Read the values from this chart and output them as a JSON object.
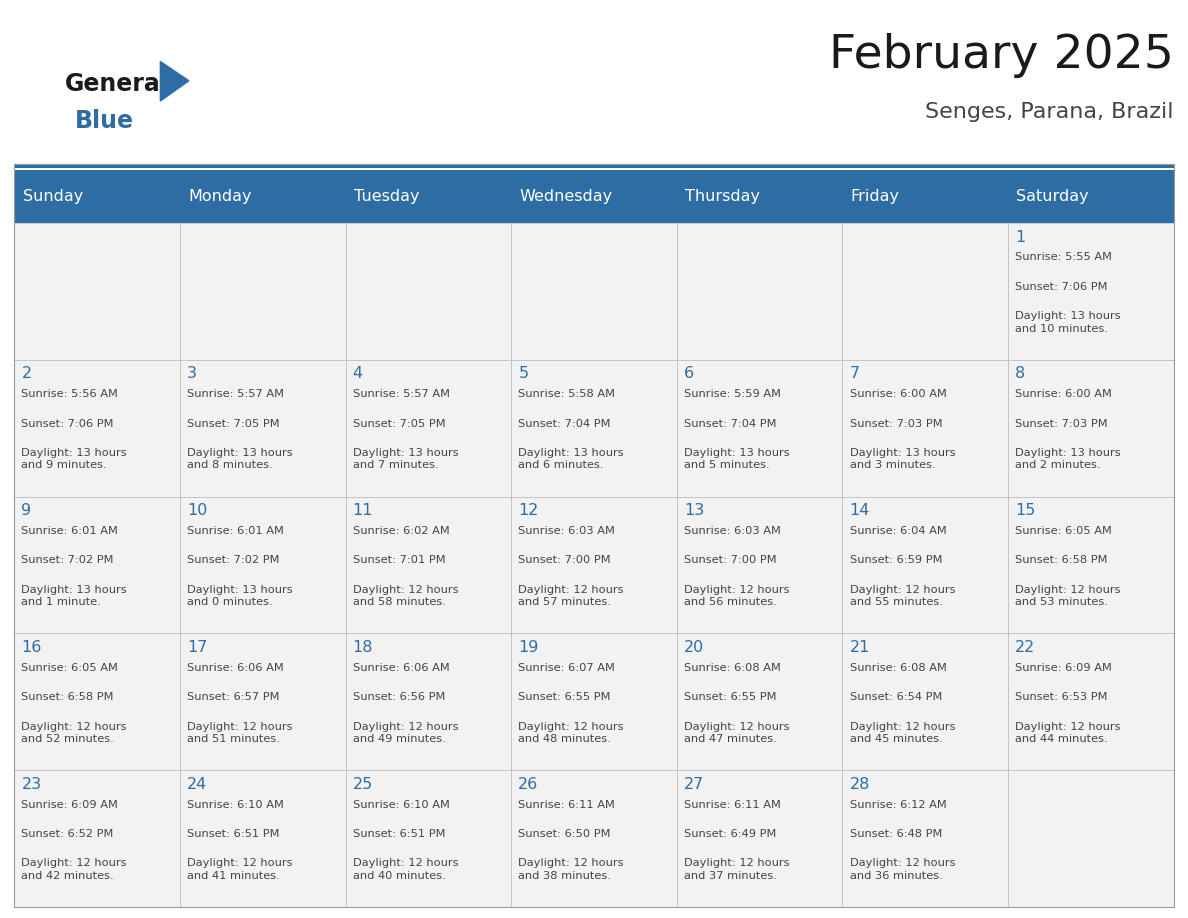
{
  "title": "February 2025",
  "subtitle": "Senges, Parana, Brazil",
  "header_bg": "#2E6DA4",
  "header_text_color": "#FFFFFF",
  "cell_bg_light": "#F2F2F2",
  "cell_bg_white": "#FFFFFF",
  "day_number_color": "#2E6DA4",
  "cell_text_color": "#444444",
  "grid_line_color": "#BBBBBB",
  "days_of_week": [
    "Sunday",
    "Monday",
    "Tuesday",
    "Wednesday",
    "Thursday",
    "Friday",
    "Saturday"
  ],
  "weeks": [
    [
      null,
      null,
      null,
      null,
      null,
      null,
      1
    ],
    [
      2,
      3,
      4,
      5,
      6,
      7,
      8
    ],
    [
      9,
      10,
      11,
      12,
      13,
      14,
      15
    ],
    [
      16,
      17,
      18,
      19,
      20,
      21,
      22
    ],
    [
      23,
      24,
      25,
      26,
      27,
      28,
      null
    ]
  ],
  "cell_data": {
    "1": {
      "sunrise": "5:55 AM",
      "sunset": "7:06 PM",
      "daylight": "13 hours and 10 minutes."
    },
    "2": {
      "sunrise": "5:56 AM",
      "sunset": "7:06 PM",
      "daylight": "13 hours and 9 minutes."
    },
    "3": {
      "sunrise": "5:57 AM",
      "sunset": "7:05 PM",
      "daylight": "13 hours and 8 minutes."
    },
    "4": {
      "sunrise": "5:57 AM",
      "sunset": "7:05 PM",
      "daylight": "13 hours and 7 minutes."
    },
    "5": {
      "sunrise": "5:58 AM",
      "sunset": "7:04 PM",
      "daylight": "13 hours and 6 minutes."
    },
    "6": {
      "sunrise": "5:59 AM",
      "sunset": "7:04 PM",
      "daylight": "13 hours and 5 minutes."
    },
    "7": {
      "sunrise": "6:00 AM",
      "sunset": "7:03 PM",
      "daylight": "13 hours and 3 minutes."
    },
    "8": {
      "sunrise": "6:00 AM",
      "sunset": "7:03 PM",
      "daylight": "13 hours and 2 minutes."
    },
    "9": {
      "sunrise": "6:01 AM",
      "sunset": "7:02 PM",
      "daylight": "13 hours and 1 minute."
    },
    "10": {
      "sunrise": "6:01 AM",
      "sunset": "7:02 PM",
      "daylight": "13 hours and 0 minutes."
    },
    "11": {
      "sunrise": "6:02 AM",
      "sunset": "7:01 PM",
      "daylight": "12 hours and 58 minutes."
    },
    "12": {
      "sunrise": "6:03 AM",
      "sunset": "7:00 PM",
      "daylight": "12 hours and 57 minutes."
    },
    "13": {
      "sunrise": "6:03 AM",
      "sunset": "7:00 PM",
      "daylight": "12 hours and 56 minutes."
    },
    "14": {
      "sunrise": "6:04 AM",
      "sunset": "6:59 PM",
      "daylight": "12 hours and 55 minutes."
    },
    "15": {
      "sunrise": "6:05 AM",
      "sunset": "6:58 PM",
      "daylight": "12 hours and 53 minutes."
    },
    "16": {
      "sunrise": "6:05 AM",
      "sunset": "6:58 PM",
      "daylight": "12 hours and 52 minutes."
    },
    "17": {
      "sunrise": "6:06 AM",
      "sunset": "6:57 PM",
      "daylight": "12 hours and 51 minutes."
    },
    "18": {
      "sunrise": "6:06 AM",
      "sunset": "6:56 PM",
      "daylight": "12 hours and 49 minutes."
    },
    "19": {
      "sunrise": "6:07 AM",
      "sunset": "6:55 PM",
      "daylight": "12 hours and 48 minutes."
    },
    "20": {
      "sunrise": "6:08 AM",
      "sunset": "6:55 PM",
      "daylight": "12 hours and 47 minutes."
    },
    "21": {
      "sunrise": "6:08 AM",
      "sunset": "6:54 PM",
      "daylight": "12 hours and 45 minutes."
    },
    "22": {
      "sunrise": "6:09 AM",
      "sunset": "6:53 PM",
      "daylight": "12 hours and 44 minutes."
    },
    "23": {
      "sunrise": "6:09 AM",
      "sunset": "6:52 PM",
      "daylight": "12 hours and 42 minutes."
    },
    "24": {
      "sunrise": "6:10 AM",
      "sunset": "6:51 PM",
      "daylight": "12 hours and 41 minutes."
    },
    "25": {
      "sunrise": "6:10 AM",
      "sunset": "6:51 PM",
      "daylight": "12 hours and 40 minutes."
    },
    "26": {
      "sunrise": "6:11 AM",
      "sunset": "6:50 PM",
      "daylight": "12 hours and 38 minutes."
    },
    "27": {
      "sunrise": "6:11 AM",
      "sunset": "6:49 PM",
      "daylight": "12 hours and 37 minutes."
    },
    "28": {
      "sunrise": "6:12 AM",
      "sunset": "6:48 PM",
      "daylight": "12 hours and 36 minutes."
    }
  }
}
